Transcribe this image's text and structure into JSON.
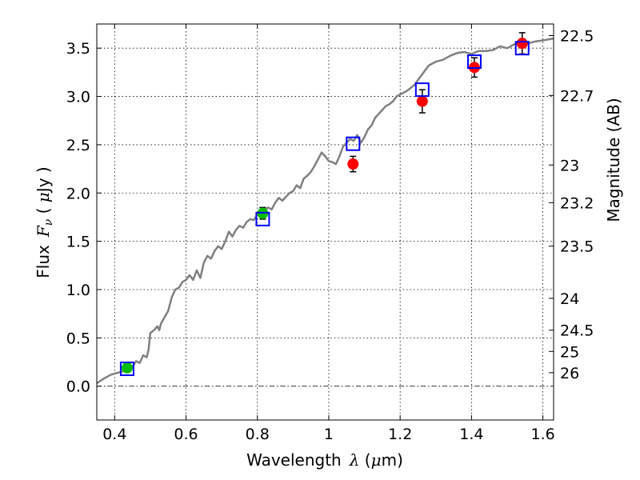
{
  "chart_data": {
    "type": "scatter",
    "xlabel_prefix": "Wavelength",
    "xlabel_symbol": "λ",
    "xlabel_unit_open": " (",
    "xlabel_unit_mu": "μ",
    "xlabel_unit_close": "m)",
    "ylabel_prefix": "Flux",
    "ylabel_symbol_main": "F",
    "ylabel_symbol_sub": "ν",
    "ylabel_unit_open": " ( ",
    "ylabel_unit_mu": "μ",
    "ylabel_unit_close": "Jy )",
    "y2label": "Magnitude (AB)",
    "xlim": [
      0.35,
      1.63
    ],
    "ylim": [
      -0.35,
      3.75
    ],
    "x_ticks": [
      0.4,
      0.6,
      0.8,
      1.0,
      1.2,
      1.4,
      1.6
    ],
    "x_tick_labels": [
      "0.4",
      "0.6",
      "0.8",
      "1",
      "1.2",
      "1.4",
      "1.6"
    ],
    "y_ticks": [
      0.0,
      0.5,
      1.0,
      1.5,
      2.0,
      2.5,
      3.0,
      3.5
    ],
    "y_tick_labels": [
      "0.0",
      "0.5",
      "1.0",
      "1.5",
      "2.0",
      "2.5",
      "3.0",
      "3.5"
    ],
    "mag_ticks": [
      {
        "label": "22.5",
        "flux": 3.63
      },
      {
        "label": "22.7",
        "flux": 3.01
      },
      {
        "label": "23",
        "flux": 2.29
      },
      {
        "label": "23.2",
        "flux": 1.9
      },
      {
        "label": "23.5",
        "flux": 1.45
      },
      {
        "label": "24",
        "flux": 0.91
      },
      {
        "label": "24.5",
        "flux": 0.58
      },
      {
        "label": "25",
        "flux": 0.36
      },
      {
        "label": "26",
        "flux": 0.14
      }
    ],
    "grid": true,
    "zero_line": 0.0,
    "series": [
      {
        "name": "template-spectrum",
        "kind": "line",
        "color": "#808080",
        "x": [
          0.35,
          0.37,
          0.38,
          0.39,
          0.4,
          0.42,
          0.44,
          0.45,
          0.46,
          0.47,
          0.48,
          0.49,
          0.495,
          0.5,
          0.51,
          0.52,
          0.525,
          0.53,
          0.55,
          0.56,
          0.57,
          0.58,
          0.59,
          0.6,
          0.61,
          0.62,
          0.63,
          0.64,
          0.65,
          0.66,
          0.67,
          0.68,
          0.69,
          0.7,
          0.71,
          0.72,
          0.73,
          0.74,
          0.75,
          0.76,
          0.77,
          0.78,
          0.79,
          0.8,
          0.81,
          0.82,
          0.83,
          0.84,
          0.85,
          0.86,
          0.87,
          0.88,
          0.89,
          0.9,
          0.91,
          0.92,
          0.93,
          0.94,
          0.95,
          0.96,
          0.97,
          0.98,
          0.99,
          1.0,
          1.01,
          1.02,
          1.03,
          1.04,
          1.05,
          1.06,
          1.07,
          1.08,
          1.09,
          1.1,
          1.11,
          1.12,
          1.13,
          1.14,
          1.15,
          1.16,
          1.17,
          1.18,
          1.19,
          1.2,
          1.22,
          1.24,
          1.26,
          1.28,
          1.3,
          1.32,
          1.34,
          1.36,
          1.38,
          1.4,
          1.42,
          1.44,
          1.46,
          1.48,
          1.5,
          1.52,
          1.54,
          1.56,
          1.58,
          1.6,
          1.63
        ],
        "y": [
          0.03,
          0.08,
          0.1,
          0.12,
          0.13,
          0.15,
          0.18,
          0.2,
          0.26,
          0.24,
          0.32,
          0.3,
          0.38,
          0.55,
          0.58,
          0.62,
          0.58,
          0.65,
          0.78,
          0.92,
          1.0,
          1.02,
          1.08,
          1.1,
          1.15,
          1.1,
          1.2,
          1.12,
          1.28,
          1.35,
          1.32,
          1.4,
          1.45,
          1.42,
          1.5,
          1.6,
          1.55,
          1.62,
          1.66,
          1.64,
          1.7,
          1.73,
          1.72,
          1.78,
          1.8,
          1.82,
          1.85,
          1.83,
          1.9,
          1.95,
          1.92,
          1.96,
          2.0,
          2.02,
          2.08,
          2.05,
          2.15,
          2.18,
          2.22,
          2.28,
          2.35,
          2.42,
          2.38,
          2.33,
          2.32,
          2.3,
          2.38,
          2.48,
          2.52,
          2.56,
          2.54,
          2.6,
          2.52,
          2.58,
          2.66,
          2.7,
          2.78,
          2.82,
          2.86,
          2.9,
          2.92,
          2.95,
          3.0,
          3.02,
          3.06,
          3.12,
          3.22,
          3.32,
          3.36,
          3.38,
          3.42,
          3.45,
          3.46,
          3.44,
          3.47,
          3.47,
          3.48,
          3.52,
          3.5,
          3.54,
          3.56,
          3.55,
          3.57,
          3.58,
          3.6
        ]
      },
      {
        "name": "model-photometry",
        "kind": "open-square",
        "color": "#0000ff",
        "x": [
          0.435,
          0.815,
          1.068,
          1.262,
          1.408,
          1.542
        ],
        "y": [
          0.18,
          1.73,
          2.51,
          3.07,
          3.36,
          3.5
        ]
      },
      {
        "name": "observed-optical",
        "kind": "filled-circle",
        "color": "#00bb00",
        "x": [
          0.435,
          0.815
        ],
        "y": [
          0.19,
          1.79
        ],
        "yerr": [
          0.04,
          0.06
        ]
      },
      {
        "name": "observed-nir",
        "kind": "filled-circle",
        "color": "#ff0000",
        "x": [
          1.068,
          1.262,
          1.408,
          1.542
        ],
        "y": [
          2.3,
          2.95,
          3.3,
          3.55
        ],
        "yerr": [
          0.08,
          0.12,
          0.1,
          0.11
        ]
      }
    ]
  }
}
